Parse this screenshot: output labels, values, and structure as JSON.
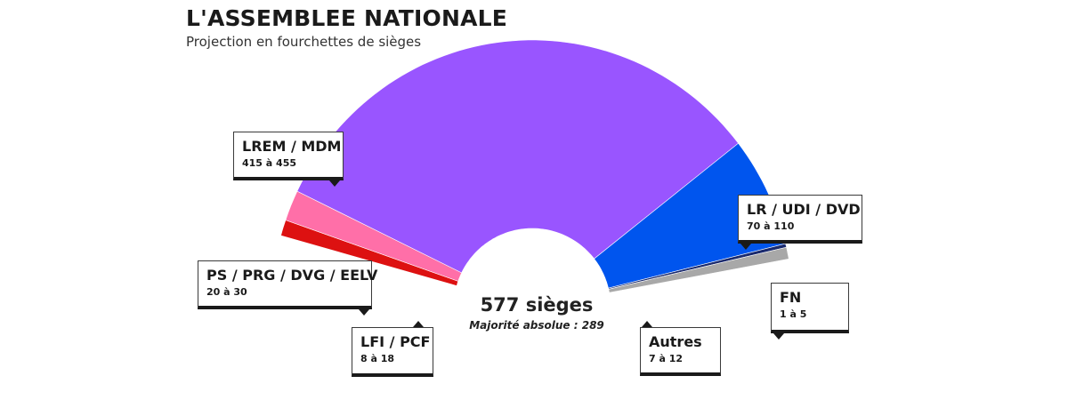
{
  "header": {
    "title": "L'ASSEMBLEE NATIONALE",
    "subtitle": "Projection en fourchettes de sièges"
  },
  "center": {
    "total": "577 sièges",
    "majority": "Majorité absolue : 289"
  },
  "chart_data": {
    "type": "pie",
    "title": "L'ASSEMBLEE NATIONALE",
    "subtitle": "Projection en fourchettes de sièges",
    "total_seats": 577,
    "absolute_majority": 289,
    "series": [
      {
        "name": "LFI / PCF",
        "range_label": "8 à 18",
        "min": 8,
        "max": 18,
        "color": "#dd1111"
      },
      {
        "name": "PS / PRG / DVG / EELV",
        "range_label": "20 à 30",
        "min": 20,
        "max": 30,
        "color": "#ff6fa8"
      },
      {
        "name": "LREM / MDM",
        "range_label": "415 à 455",
        "min": 415,
        "max": 455,
        "color": "#9955ff"
      },
      {
        "name": "LR / UDI / DVD",
        "range_label": "70 à 110",
        "min": 70,
        "max": 110,
        "color": "#0055ee"
      },
      {
        "name": "FN",
        "range_label": "1 à 5",
        "min": 1,
        "max": 5,
        "color": "#1a2a6e"
      },
      {
        "name": "Autres",
        "range_label": "7 à 12",
        "min": 7,
        "max": 12,
        "color": "#a8a8a8"
      }
    ]
  }
}
